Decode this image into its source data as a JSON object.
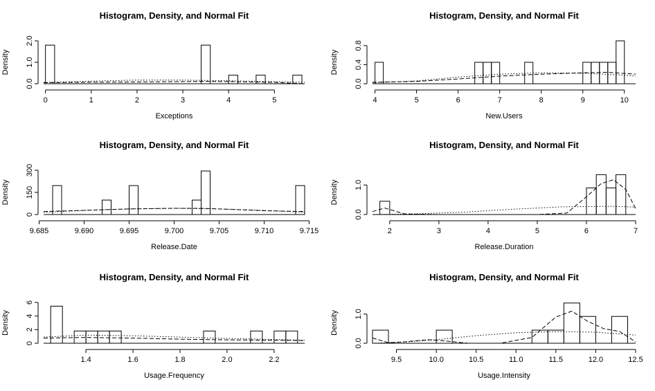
{
  "chart_data": [
    {
      "type": "bar",
      "title": "Histogram, Density, and Normal Fit",
      "xlabel": "Exceptions",
      "ylabel": "Density",
      "xlim": [
        -0.04,
        5.66
      ],
      "ylim": [
        0,
        2.0
      ],
      "xticks": [
        "0",
        "1",
        "2",
        "3",
        "4",
        "5"
      ],
      "yticks": [
        "0.0",
        "1.0",
        "2.0"
      ],
      "bins": [
        {
          "x0": 0.0,
          "x1": 0.2,
          "density": 1.8
        },
        {
          "x0": 3.4,
          "x1": 3.6,
          "density": 1.8
        },
        {
          "x0": 4.0,
          "x1": 4.2,
          "density": 0.4
        },
        {
          "x0": 4.6,
          "x1": 4.8,
          "density": 0.4
        },
        {
          "x0": 5.4,
          "x1": 5.6,
          "density": 0.4
        }
      ],
      "series": [
        {
          "style": "dashed",
          "x": [
            -0.04,
            1,
            2,
            3,
            3.5,
            4,
            5,
            5.66
          ],
          "y": [
            0.05,
            0.07,
            0.08,
            0.1,
            0.11,
            0.1,
            0.06,
            0.0
          ]
        },
        {
          "style": "dotted",
          "x": [
            -0.04,
            1,
            2,
            3,
            4,
            5,
            5.66
          ],
          "y": [
            0.06,
            0.12,
            0.17,
            0.17,
            0.14,
            0.1,
            0.07
          ]
        }
      ]
    },
    {
      "type": "bar",
      "title": "Histogram, Density, and Normal Fit",
      "xlabel": "New.Users",
      "ylabel": "Density",
      "xlim": [
        3.94,
        10.27
      ],
      "ylim": [
        0,
        0.9
      ],
      "xticks": [
        "4",
        "5",
        "6",
        "7",
        "8",
        "9",
        "10"
      ],
      "yticks": [
        "0.0",
        "0.4",
        "0.8"
      ],
      "bins": [
        {
          "x0": 4.0,
          "x1": 4.2,
          "density": 0.45
        },
        {
          "x0": 6.4,
          "x1": 6.6,
          "density": 0.45
        },
        {
          "x0": 6.6,
          "x1": 6.8,
          "density": 0.45
        },
        {
          "x0": 6.8,
          "x1": 7.0,
          "density": 0.45
        },
        {
          "x0": 7.6,
          "x1": 7.8,
          "density": 0.45
        },
        {
          "x0": 9.0,
          "x1": 9.2,
          "density": 0.45
        },
        {
          "x0": 9.2,
          "x1": 9.4,
          "density": 0.45
        },
        {
          "x0": 9.4,
          "x1": 9.6,
          "density": 0.45
        },
        {
          "x0": 9.6,
          "x1": 9.8,
          "density": 0.45
        },
        {
          "x0": 9.8,
          "x1": 10.0,
          "density": 0.9
        }
      ],
      "series": [
        {
          "style": "dashed",
          "x": [
            3.94,
            5,
            6,
            7,
            8,
            9,
            9.6,
            10.27
          ],
          "y": [
            0.03,
            0.05,
            0.1,
            0.16,
            0.2,
            0.23,
            0.24,
            0.2
          ]
        },
        {
          "style": "dotted",
          "x": [
            3.94,
            5,
            6,
            7,
            8,
            9,
            10,
            10.27
          ],
          "y": [
            0.02,
            0.06,
            0.14,
            0.2,
            0.23,
            0.22,
            0.18,
            0.16
          ]
        }
      ]
    },
    {
      "type": "bar",
      "title": "Histogram, Density, and Normal Fit",
      "xlabel": "Release.Date",
      "ylabel": "Density",
      "xlim": [
        9.6855,
        9.7145
      ],
      "ylim": [
        0,
        300
      ],
      "xticks": [
        "9.685",
        "9.690",
        "9.695",
        "9.700",
        "9.705",
        "9.710",
        "9.715"
      ],
      "yticks": [
        "0",
        "150",
        "300"
      ],
      "bins": [
        {
          "x0": 9.6865,
          "x1": 9.6875,
          "density": 196
        },
        {
          "x0": 9.692,
          "x1": 9.693,
          "density": 98
        },
        {
          "x0": 9.695,
          "x1": 9.696,
          "density": 196
        },
        {
          "x0": 9.702,
          "x1": 9.703,
          "density": 98
        },
        {
          "x0": 9.703,
          "x1": 9.704,
          "density": 295
        },
        {
          "x0": 9.7135,
          "x1": 9.7145,
          "density": 196
        }
      ],
      "series": [
        {
          "style": "dashed",
          "x": [
            9.6855,
            9.69,
            9.695,
            9.7,
            9.703,
            9.705,
            9.71,
            9.7145
          ],
          "y": [
            20,
            28,
            38,
            42,
            42,
            38,
            26,
            20
          ]
        },
        {
          "style": "dotted",
          "x": [
            9.6855,
            9.69,
            9.695,
            9.7,
            9.705,
            9.71,
            9.7145
          ],
          "y": [
            15,
            28,
            38,
            42,
            38,
            28,
            15
          ]
        }
      ]
    },
    {
      "type": "bar",
      "title": "Histogram, Density, and Normal Fit",
      "xlabel": "Release.Duration",
      "ylabel": "Density",
      "xlim": [
        1.65,
        7.0
      ],
      "ylim": [
        0,
        1.5
      ],
      "xticks": [
        "2",
        "3",
        "4",
        "5",
        "6",
        "7"
      ],
      "yticks": [
        "0.0",
        "1.0"
      ],
      "bins": [
        {
          "x0": 1.8,
          "x1": 2.0,
          "density": 0.45
        },
        {
          "x0": 6.0,
          "x1": 6.2,
          "density": 0.9
        },
        {
          "x0": 6.2,
          "x1": 6.4,
          "density": 1.35
        },
        {
          "x0": 6.4,
          "x1": 6.6,
          "density": 0.9
        },
        {
          "x0": 6.6,
          "x1": 6.8,
          "density": 1.35
        }
      ],
      "series": [
        {
          "style": "dashed",
          "x": [
            1.65,
            1.9,
            2.3,
            3,
            4,
            5,
            5.6,
            6,
            6.3,
            6.55,
            6.8,
            7.0
          ],
          "y": [
            0.1,
            0.22,
            0.02,
            0.0,
            0.0,
            0.0,
            0.05,
            0.6,
            1.05,
            1.18,
            0.85,
            0.2
          ]
        },
        {
          "style": "dotted",
          "x": [
            1.65,
            2.5,
            3.5,
            4.5,
            5.5,
            6.5,
            7.0
          ],
          "y": [
            0.0,
            0.02,
            0.08,
            0.18,
            0.26,
            0.28,
            0.25
          ]
        }
      ]
    },
    {
      "type": "bar",
      "title": "Histogram, Density, and Normal Fit",
      "xlabel": "Usage.Frequency",
      "ylabel": "Density",
      "xlim": [
        1.22,
        2.33
      ],
      "ylim": [
        0,
        6
      ],
      "xticks": [
        "1.4",
        "1.6",
        "1.8",
        "2.0",
        "2.2"
      ],
      "yticks": [
        "0",
        "2",
        "4",
        "6"
      ],
      "bins": [
        {
          "x0": 1.25,
          "x1": 1.3,
          "density": 5.45
        },
        {
          "x0": 1.35,
          "x1": 1.4,
          "density": 1.8
        },
        {
          "x0": 1.4,
          "x1": 1.45,
          "density": 1.8
        },
        {
          "x0": 1.45,
          "x1": 1.5,
          "density": 1.8
        },
        {
          "x0": 1.5,
          "x1": 1.55,
          "density": 1.8
        },
        {
          "x0": 1.9,
          "x1": 1.95,
          "density": 1.8
        },
        {
          "x0": 2.1,
          "x1": 2.15,
          "density": 1.8
        },
        {
          "x0": 2.2,
          "x1": 2.25,
          "density": 1.8
        },
        {
          "x0": 2.25,
          "x1": 2.3,
          "density": 1.8
        }
      ],
      "series": [
        {
          "style": "dashed",
          "x": [
            1.22,
            1.4,
            1.6,
            1.8,
            2.0,
            2.2,
            2.33
          ],
          "y": [
            0.75,
            0.85,
            0.75,
            0.6,
            0.5,
            0.45,
            0.4
          ]
        },
        {
          "style": "dotted",
          "x": [
            1.22,
            1.4,
            1.6,
            1.8,
            2.0,
            2.2,
            2.33
          ],
          "y": [
            0.9,
            1.2,
            1.1,
            0.9,
            0.7,
            0.55,
            0.45
          ]
        }
      ]
    },
    {
      "type": "bar",
      "title": "Histogram, Density, and Normal Fit",
      "xlabel": "Usage.Intensity",
      "ylabel": "Density",
      "xlim": [
        9.2,
        12.5
      ],
      "ylim": [
        0,
        1.4
      ],
      "xticks": [
        "9.5",
        "10.0",
        "10.5",
        "11.0",
        "11.5",
        "12.0",
        "12.5"
      ],
      "yticks": [
        "0.0",
        "1.0"
      ],
      "bins": [
        {
          "x0": 9.2,
          "x1": 9.4,
          "density": 0.45
        },
        {
          "x0": 10.0,
          "x1": 10.2,
          "density": 0.45
        },
        {
          "x0": 11.2,
          "x1": 11.4,
          "density": 0.45
        },
        {
          "x0": 11.4,
          "x1": 11.6,
          "density": 0.45
        },
        {
          "x0": 11.6,
          "x1": 11.8,
          "density": 1.38
        },
        {
          "x0": 11.8,
          "x1": 12.0,
          "density": 0.92
        },
        {
          "x0": 12.2,
          "x1": 12.4,
          "density": 0.92
        }
      ],
      "series": [
        {
          "style": "dashed",
          "x": [
            9.2,
            9.4,
            9.6,
            9.9,
            10.1,
            10.4,
            10.8,
            11.2,
            11.5,
            11.7,
            11.9,
            12.1,
            12.3,
            12.5
          ],
          "y": [
            0.18,
            0.02,
            0.05,
            0.12,
            0.08,
            0.0,
            0.0,
            0.2,
            0.9,
            1.1,
            0.75,
            0.5,
            0.4,
            0.05
          ]
        },
        {
          "style": "dotted",
          "x": [
            9.2,
            9.6,
            10.0,
            10.5,
            11.0,
            11.5,
            12.0,
            12.5
          ],
          "y": [
            0.0,
            0.04,
            0.12,
            0.26,
            0.36,
            0.4,
            0.38,
            0.28
          ]
        }
      ]
    }
  ]
}
